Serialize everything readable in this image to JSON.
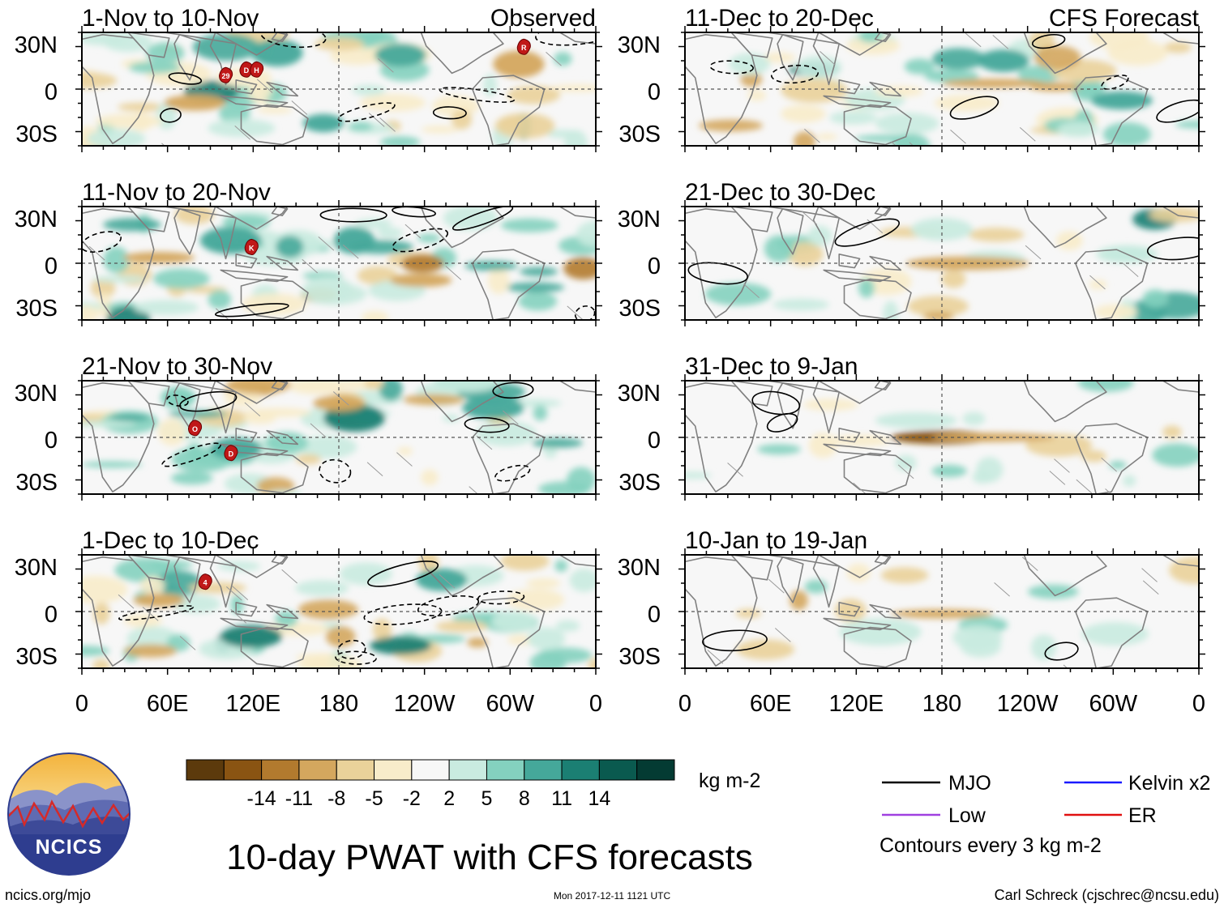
{
  "title": "10-day PWAT with CFS forecasts",
  "panels_left": [
    {
      "title": "1-Nov to 10-Nov",
      "tag": "Observed"
    },
    {
      "title": "11-Nov to 20-Nov",
      "tag": ""
    },
    {
      "title": "21-Nov to 30-Nov",
      "tag": ""
    },
    {
      "title": "1-Dec to 10-Dec",
      "tag": ""
    }
  ],
  "panels_right": [
    {
      "title": "11-Dec to 20-Dec",
      "tag": "CFS Forecast"
    },
    {
      "title": "21-Dec to 30-Dec",
      "tag": ""
    },
    {
      "title": "31-Dec to 9-Jan",
      "tag": ""
    },
    {
      "title": "10-Jan to 19-Jan",
      "tag": ""
    }
  ],
  "lat_labels": [
    "30N",
    "0",
    "30S"
  ],
  "lon_labels": [
    "0",
    "60E",
    "120E",
    "180",
    "120W",
    "60W",
    "0"
  ],
  "colorbar": {
    "colors": [
      "#5c3a0c",
      "#8a5412",
      "#b27a2e",
      "#d4a75e",
      "#ead29a",
      "#f8ecca",
      "#f7f7f7",
      "#c9ebe0",
      "#84d1bf",
      "#45a89a",
      "#1b7f73",
      "#0a5a4f",
      "#043b33"
    ],
    "labels": [
      "-14",
      "-11",
      "-8",
      "-5",
      "-2",
      "2",
      "5",
      "8",
      "11",
      "14"
    ],
    "units": "kg m-2"
  },
  "legend": {
    "items": [
      {
        "label": "MJO",
        "color": "#000000"
      },
      {
        "label": "Kelvin x2",
        "color": "#1a1aff"
      },
      {
        "label": "Low",
        "color": "#a040e0"
      },
      {
        "label": "ER",
        "color": "#e01010"
      }
    ],
    "note": "Contours every 3 kg m-2"
  },
  "logo_text": "NCICS",
  "footer": {
    "left": "ncics.org/mjo",
    "center": "Mon 2017-12-11 1121 UTC",
    "right": "Carl Schreck (cjschrec@ncsu.edu)"
  },
  "storm_markers": [
    {
      "panel": 0,
      "label": "29"
    },
    {
      "panel": 0,
      "label": "D"
    },
    {
      "panel": 0,
      "label": "H"
    },
    {
      "panel": 0,
      "label": "R"
    },
    {
      "panel": 1,
      "label": "K"
    },
    {
      "panel": 2,
      "label": "O"
    },
    {
      "panel": 2,
      "label": "D"
    },
    {
      "panel": 3,
      "label": "4"
    }
  ]
}
